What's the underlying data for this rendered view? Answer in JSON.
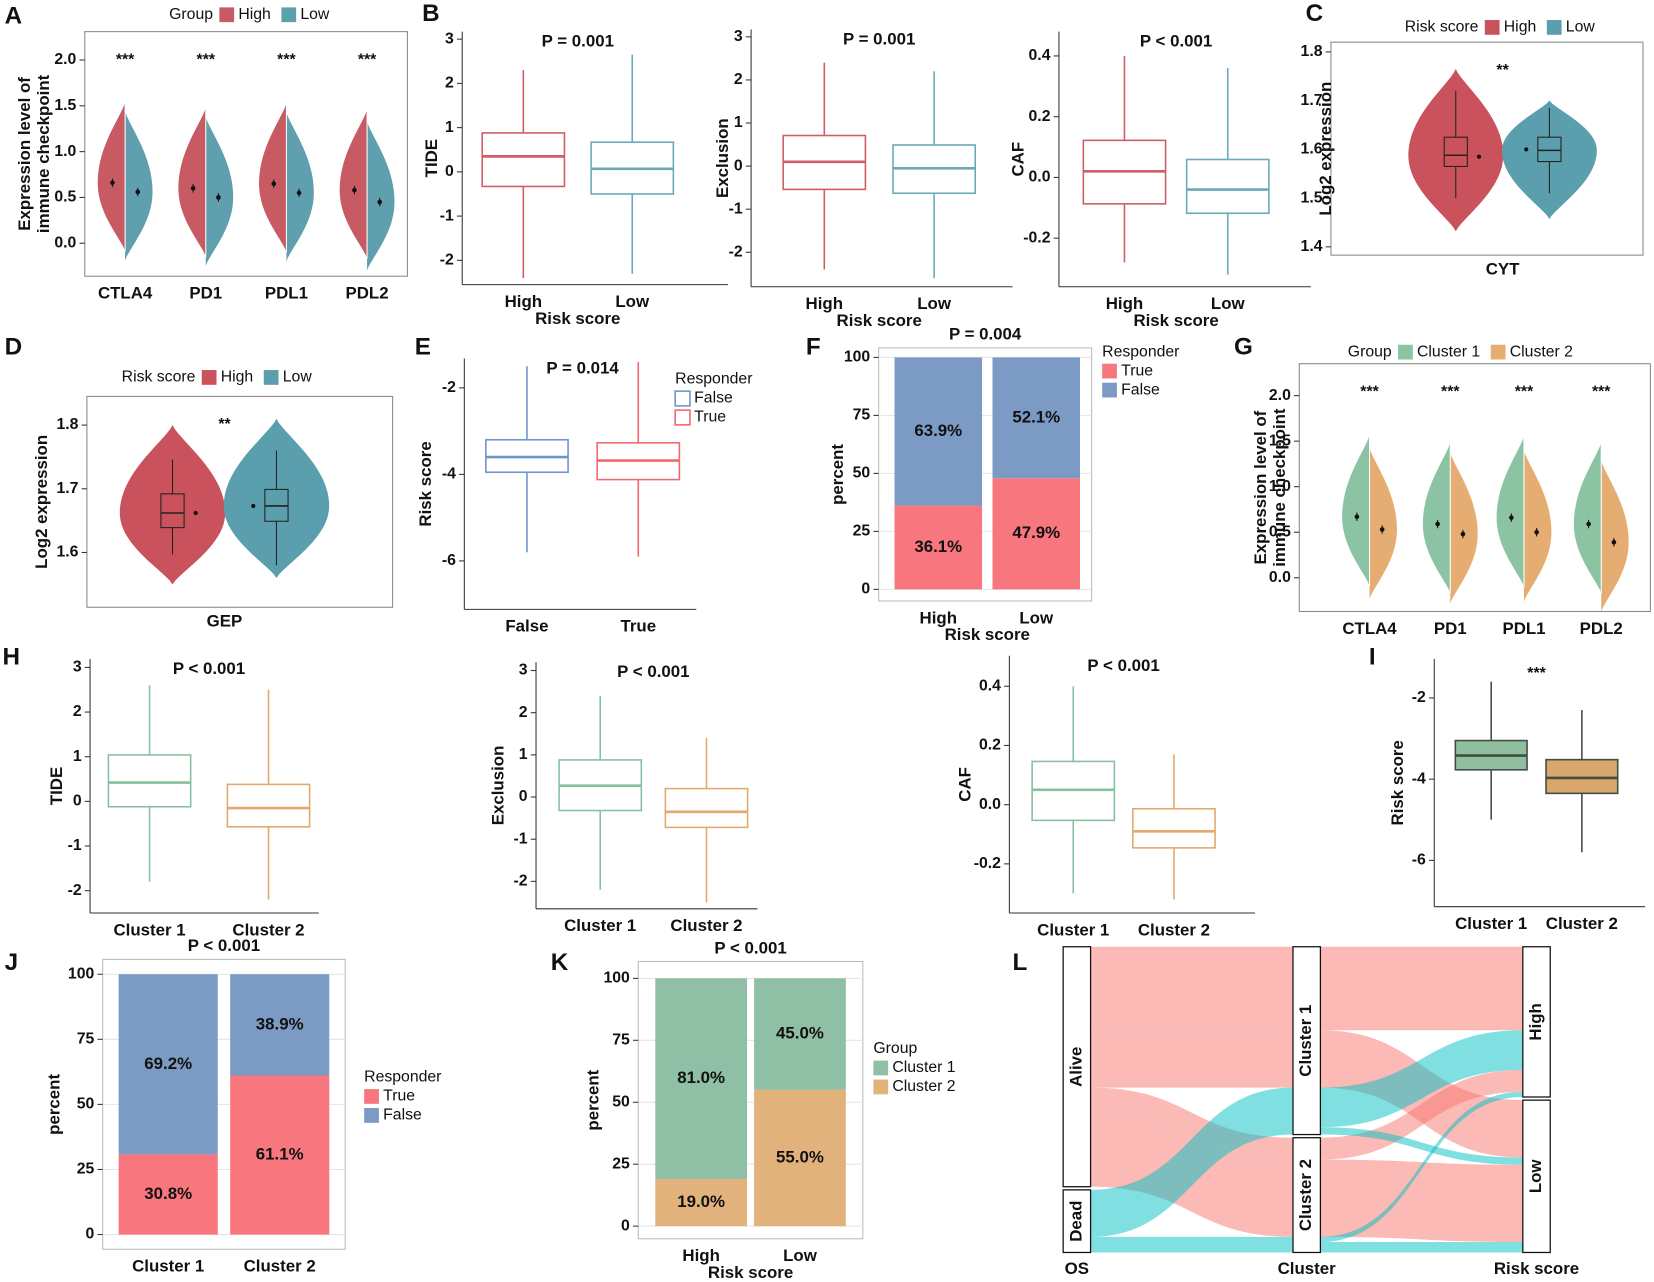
{
  "chart_data": [
    {
      "type": "split-violin",
      "panel": "A",
      "legend_title": "Group",
      "ylabel": [
        "Expression level of",
        "immune checkpoint"
      ],
      "categories": [
        "CTLA4",
        "PD1",
        "PDL1",
        "PDL2"
      ],
      "annotations": [
        "***",
        "***",
        "***",
        "***"
      ],
      "series": [
        {
          "name": "High",
          "color": "#c85a63",
          "values": [
            0.66,
            0.6,
            0.65,
            0.58
          ]
        },
        {
          "name": "Low",
          "color": "#5f9fae",
          "values": [
            0.56,
            0.5,
            0.55,
            0.45
          ]
        }
      ],
      "ylim": [
        -0.36,
        2.31
      ],
      "yticks": [
        {
          "value": 0,
          "label": "0.0"
        },
        0.5,
        {
          "value": 1,
          "label": "1.0"
        },
        1.5,
        {
          "value": 2,
          "label": "2.0"
        }
      ]
    },
    {
      "type": "box",
      "panel": "B",
      "subtitle": "P = 0.001",
      "ylabel": "TIDE",
      "xlabel": "Risk score",
      "categories": [
        "High",
        "Low"
      ],
      "colors": [
        "#cf5d67",
        "#6ba8b8"
      ],
      "boxes": [
        {
          "whisker_low": -2.4,
          "q1": -0.33,
          "median": 0.35,
          "q3": 0.88,
          "whisker_high": 2.3
        },
        {
          "whisker_low": -2.3,
          "q1": -0.5,
          "median": 0.07,
          "q3": 0.67,
          "whisker_high": 2.65
        }
      ],
      "ylim": [
        -2.55,
        3.17
      ],
      "yticks": [
        -2,
        -1,
        0,
        1,
        2,
        3
      ]
    },
    {
      "type": "box",
      "subtitle": "P = 0.001",
      "ylabel": "Exclusion",
      "xlabel": "Risk score",
      "categories": [
        "High",
        "Low"
      ],
      "colors": [
        "#cf5d67",
        "#6ba8b8"
      ],
      "boxes": [
        {
          "whisker_low": -2.4,
          "q1": -0.54,
          "median": 0.1,
          "q3": 0.71,
          "whisker_high": 2.4
        },
        {
          "whisker_low": -2.6,
          "q1": -0.63,
          "median": -0.05,
          "q3": 0.49,
          "whisker_high": 2.2
        }
      ],
      "ylim": [
        -2.8,
        3.17
      ],
      "yticks": [
        -2,
        -1,
        0,
        1,
        2,
        3
      ]
    },
    {
      "type": "box",
      "subtitle": "P < 0.001",
      "ylabel": "CAF",
      "xlabel": "Risk score",
      "categories": [
        "High",
        "Low"
      ],
      "colors": [
        "#cf5d67",
        "#6ba8b8"
      ],
      "boxes": [
        {
          "whisker_low": -0.28,
          "q1": -0.087,
          "median": 0.02,
          "q3": 0.122,
          "whisker_high": 0.4
        },
        {
          "whisker_low": -0.32,
          "q1": -0.118,
          "median": -0.04,
          "q3": 0.059,
          "whisker_high": 0.36
        }
      ],
      "ylim": [
        -0.36,
        0.48
      ],
      "yticks": [
        -0.2,
        {
          "value": 0,
          "label": "0.0"
        },
        0.2,
        0.4
      ]
    },
    {
      "type": "violin-box",
      "panel": "C",
      "legend_title": "Risk score",
      "ylabel": "Log2 expression",
      "xlabel": "CYT",
      "annotation": "**",
      "series": [
        {
          "name": "High",
          "color": "#c9525c",
          "min": 1.432,
          "max": 1.765,
          "mean": 1.585,
          "box": {
            "whisker_low": 1.5,
            "q1": 1.565,
            "median": 1.588,
            "q3": 1.625,
            "whisker_high": 1.72
          }
        },
        {
          "name": "Low",
          "color": "#5b9eae",
          "min": 1.457,
          "max": 1.7,
          "mean": 1.6,
          "box": {
            "whisker_low": 1.51,
            "q1": 1.575,
            "median": 1.598,
            "q3": 1.625,
            "whisker_high": 1.685
          }
        }
      ],
      "ylim": [
        1.383,
        1.82
      ],
      "yticks": [
        1.4,
        1.5,
        1.6,
        1.7,
        1.8
      ]
    },
    {
      "type": "violin-box",
      "panel": "D",
      "legend_title": "Risk score",
      "ylabel": "Log2 expression",
      "xlabel": "GEP",
      "annotation": "**",
      "series": [
        {
          "name": "High",
          "color": "#c9525c",
          "min": 1.55,
          "max": 1.8,
          "mean": 1.662,
          "box": {
            "whisker_low": 1.597,
            "q1": 1.639,
            "median": 1.662,
            "q3": 1.692,
            "whisker_high": 1.746
          }
        },
        {
          "name": "Low",
          "color": "#5b9eae",
          "min": 1.56,
          "max": 1.81,
          "mean": 1.673,
          "box": {
            "whisker_low": 1.58,
            "q1": 1.649,
            "median": 1.673,
            "q3": 1.699,
            "whisker_high": 1.76
          }
        }
      ],
      "ylim": [
        1.514,
        1.845
      ],
      "yticks": [
        1.6,
        1.7,
        1.8
      ]
    },
    {
      "type": "box",
      "panel": "E",
      "subtitle": "P = 0.014",
      "ylabel": "Risk score",
      "legend_title": "Responder",
      "categories": [
        "False",
        "True"
      ],
      "colors": [
        "#6f95cc",
        "#f0686f"
      ],
      "boxes": [
        {
          "whisker_low": -5.8,
          "q1": -3.95,
          "median": -3.6,
          "q3": -3.2,
          "whisker_high": -1.5
        },
        {
          "whisker_low": -5.9,
          "q1": -4.12,
          "median": -3.68,
          "q3": -3.27,
          "whisker_high": -1.4
        }
      ],
      "ylim": [
        -7.12,
        -1.32
      ],
      "yticks": [
        -6,
        -4,
        -2
      ]
    },
    {
      "type": "stacked-bar",
      "panel": "F",
      "subtitle": "P = 0.004",
      "ylabel": "percent",
      "xlabel": "Risk score",
      "legend_title": "Responder",
      "categories": [
        "High",
        "Low"
      ],
      "first_series_on_top": false,
      "series": [
        {
          "name": "True",
          "color": "#f8767d",
          "values": [
            36.1,
            47.9
          ],
          "value_labels": [
            "36.1%",
            "47.9%"
          ]
        },
        {
          "name": "False",
          "color": "#7b9bc5",
          "values": [
            63.9,
            52.1
          ],
          "value_labels": [
            "63.9%",
            "52.1%"
          ]
        }
      ],
      "ylim": [
        -5,
        104.1
      ],
      "yticks": [
        0,
        25,
        50,
        75,
        100
      ]
    },
    {
      "type": "split-violin",
      "panel": "G",
      "legend_title": "Group",
      "ylabel": [
        "Expression level of",
        "immune checkpoint"
      ],
      "categories": [
        "CTLA4",
        "PD1",
        "PDL1",
        "PDL2"
      ],
      "annotations": [
        "***",
        "***",
        "***",
        "***"
      ],
      "series": [
        {
          "name": "Cluster 1",
          "color": "#8cc4a3",
          "values": [
            0.67,
            0.59,
            0.66,
            0.59
          ]
        },
        {
          "name": "Cluster 2",
          "color": "#e6ad72",
          "values": [
            0.53,
            0.48,
            0.5,
            0.39
          ]
        }
      ],
      "ylim": [
        -0.37,
        2.35
      ],
      "yticks": [
        {
          "value": 0,
          "label": "0.0"
        },
        0.5,
        {
          "value": 1,
          "label": "1.0"
        },
        1.5,
        {
          "value": 2,
          "label": "2.0"
        }
      ]
    },
    {
      "type": "box",
      "panel": "H",
      "subtitle": "P < 0.001",
      "ylabel": "TIDE",
      "categories": [
        "Cluster 1",
        "Cluster 2"
      ],
      "colors": [
        "#86c0a0",
        "#e2a96c"
      ],
      "boxes": [
        {
          "whisker_low": -1.8,
          "q1": -0.12,
          "median": 0.42,
          "q3": 1.04,
          "whisker_high": 2.6
        },
        {
          "whisker_low": -2.2,
          "q1": -0.57,
          "median": -0.15,
          "q3": 0.38,
          "whisker_high": 2.5
        }
      ],
      "ylim": [
        -2.5,
        3.19
      ],
      "yticks": [
        -2,
        -1,
        0,
        1,
        2,
        3
      ]
    },
    {
      "type": "box",
      "subtitle": "P < 0.001",
      "ylabel": "Exclusion",
      "categories": [
        "Cluster 1",
        "Cluster 2"
      ],
      "colors": [
        "#86c0a0",
        "#e2a96c"
      ],
      "boxes": [
        {
          "whisker_low": -2.2,
          "q1": -0.32,
          "median": 0.27,
          "q3": 0.88,
          "whisker_high": 2.4
        },
        {
          "whisker_low": -2.5,
          "q1": -0.72,
          "median": -0.35,
          "q3": 0.2,
          "whisker_high": 1.4
        }
      ],
      "ylim": [
        -2.65,
        3.2
      ],
      "yticks": [
        -2,
        -1,
        0,
        1,
        2,
        3
      ]
    },
    {
      "type": "box",
      "subtitle": "P < 0.001",
      "ylabel": "CAF",
      "categories": [
        "Cluster 1",
        "Cluster 2"
      ],
      "colors": [
        "#86c0a0",
        "#e2a96c"
      ],
      "boxes": [
        {
          "whisker_low": -0.3,
          "q1": -0.053,
          "median": 0.05,
          "q3": 0.146,
          "whisker_high": 0.4
        },
        {
          "whisker_low": -0.32,
          "q1": -0.146,
          "median": -0.09,
          "q3": -0.014,
          "whisker_high": 0.17
        }
      ],
      "ylim": [
        -0.366,
        0.503
      ],
      "yticks": [
        -0.2,
        {
          "value": 0,
          "label": "0.0"
        },
        0.2,
        0.4
      ]
    },
    {
      "type": "box",
      "panel": "I",
      "annotation": "***",
      "ylabel": "Risk score",
      "filled": true,
      "categories": [
        "Cluster 1",
        "Cluster 2"
      ],
      "colors": [
        "#8fbf9e",
        "#d9a66b"
      ],
      "boxes": [
        {
          "whisker_low": -5,
          "q1": -3.77,
          "median": -3.42,
          "q3": -3.05,
          "whisker_high": -1.6
        },
        {
          "whisker_low": -5.8,
          "q1": -4.35,
          "median": -3.97,
          "q3": -3.52,
          "whisker_high": -2.3
        }
      ],
      "ylim": [
        -7.14,
        -1.04
      ],
      "yticks": [
        -6,
        -4,
        -2
      ]
    },
    {
      "type": "stacked-bar",
      "panel": "J",
      "subtitle": "P < 0.001",
      "ylabel": "percent",
      "legend_title": "Responder",
      "categories": [
        "Cluster 1",
        "Cluster 2"
      ],
      "first_series_on_top": false,
      "series": [
        {
          "name": "True",
          "color": "#f8767d",
          "values": [
            30.8,
            61.1
          ],
          "value_labels": [
            "30.8%",
            "61.1%"
          ]
        },
        {
          "name": "False",
          "color": "#7b9bc5",
          "values": [
            69.2,
            38.9
          ],
          "value_labels": [
            "69.2%",
            "38.9%"
          ]
        }
      ],
      "ylim": [
        -5.67,
        105.7
      ],
      "yticks": [
        0,
        25,
        50,
        75,
        100
      ]
    },
    {
      "type": "stacked-bar",
      "panel": "K",
      "subtitle": "P < 0.001",
      "ylabel": "percent",
      "xlabel": "Risk score",
      "legend_title": "Group",
      "categories": [
        "High",
        "Low"
      ],
      "first_series_on_top": true,
      "series": [
        {
          "name": "Cluster 1",
          "color": "#8fbfa4",
          "values": [
            81.0,
            45.0
          ],
          "value_labels": [
            "81.0%",
            "45.0%"
          ]
        },
        {
          "name": "Cluster 2",
          "color": "#e2b27c",
          "values": [
            19.0,
            55.0
          ],
          "value_labels": [
            "19.0%",
            "55.0%"
          ]
        }
      ],
      "ylim": [
        -5.1,
        106.8
      ],
      "yticks": [
        0,
        25,
        50,
        75,
        100
      ]
    },
    {
      "type": "alluvial",
      "panel": "L",
      "axes": [
        "OS",
        "Cluster",
        "Risk score"
      ],
      "nodes": [
        [
          "Alive",
          "Dead"
        ],
        [
          "Cluster 1",
          "Cluster 2"
        ],
        [
          "High",
          "Low"
        ]
      ],
      "colors": [
        "#f8766d",
        "#00bfc4"
      ],
      "flows": [
        {
          "stages": [
            "Alive",
            "Cluster 1",
            "High"
          ],
          "value": 80
        },
        {
          "stages": [
            "Alive",
            "Cluster 1",
            "Low"
          ],
          "value": 55
        },
        {
          "stages": [
            "Alive",
            "Cluster 2",
            "High"
          ],
          "value": 21
        },
        {
          "stages": [
            "Alive",
            "Cluster 2",
            "Low"
          ],
          "value": 74
        },
        {
          "stages": [
            "Dead",
            "Cluster 1",
            "High"
          ],
          "value": 38
        },
        {
          "stages": [
            "Dead",
            "Cluster 1",
            "Low"
          ],
          "value": 7
        },
        {
          "stages": [
            "Dead",
            "Cluster 2",
            "High"
          ],
          "value": 5
        },
        {
          "stages": [
            "Dead",
            "Cluster 2",
            "Low"
          ],
          "value": 10
        }
      ]
    }
  ]
}
